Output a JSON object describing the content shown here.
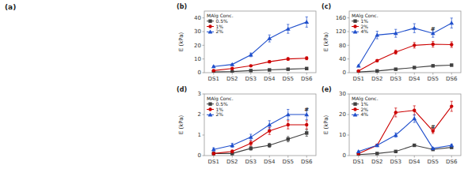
{
  "chart_data": [
    {
      "type": "blank",
      "title": "(a)"
    },
    {
      "type": "line",
      "title": "(b)",
      "y_label": "E (kPa)",
      "categories": [
        "DS1",
        "DS2",
        "DS3",
        "DS4",
        "DS5",
        "DS6"
      ],
      "ylim": [
        0,
        45
      ],
      "yticks": [
        0,
        10,
        20,
        30,
        40
      ],
      "grid": false,
      "legend": "upper-left",
      "legend_title": "MAlg Conc.",
      "series": [
        {
          "name": "0.5%",
          "color": "#404040",
          "marker": "square",
          "values": [
            0.5,
            0.8,
            1.5,
            2.0,
            2.5,
            3.0
          ],
          "errors": [
            0.1,
            0.13,
            0.2,
            0.25,
            0.3,
            0.35
          ]
        },
        {
          "name": "1%",
          "color": "#cc0000",
          "marker": "circle",
          "values": [
            1.5,
            3.0,
            5.0,
            8.0,
            10.0,
            10.5
          ],
          "errors": [
            0.2,
            0.35,
            0.55,
            0.85,
            1.05,
            1.1
          ]
        },
        {
          "name": "2%",
          "color": "#1f4fcc",
          "marker": "triangle",
          "values": [
            4.5,
            6.0,
            13.0,
            25.0,
            32.0,
            37.0
          ],
          "errors": [
            0.5,
            0.65,
            1.35,
            2.55,
            3.25,
            3.75
          ]
        }
      ]
    },
    {
      "type": "line",
      "title": "(c)",
      "y_label": "E (kPa)",
      "categories": [
        "DS1",
        "DS2",
        "DS3",
        "DS4",
        "DS5",
        "DS6"
      ],
      "ylim": [
        0,
        180
      ],
      "yticks": [
        0,
        40,
        80,
        120,
        160
      ],
      "grid": false,
      "legend": "upper-left",
      "legend_title": "MAlg Conc.",
      "annotations": [
        {
          "text": "#",
          "x": "DS5",
          "y": 120.75
        }
      ],
      "series": [
        {
          "name": "1%",
          "color": "#404040",
          "marker": "square",
          "values": [
            2.0,
            5.0,
            10.0,
            15.0,
            20.0,
            22.0
          ],
          "errors": [
            0.25,
            0.55,
            1.05,
            1.55,
            2.05,
            2.25
          ]
        },
        {
          "name": "2%",
          "color": "#cc0000",
          "marker": "circle",
          "values": [
            5.0,
            35.0,
            60.0,
            80.0,
            83.0,
            82.0
          ],
          "errors": [
            0.55,
            3.55,
            6.05,
            8.05,
            8.35,
            8.25
          ]
        },
        {
          "name": "4%",
          "color": "#1f4fcc",
          "marker": "triangle",
          "values": [
            20.0,
            110.0,
            115.0,
            130.0,
            115.0,
            145.0
          ],
          "errors": [
            2.05,
            11.05,
            11.55,
            13.05,
            11.55,
            14.55
          ]
        }
      ]
    },
    {
      "type": "line",
      "title": "(d)",
      "y_label": "E (kPa)",
      "categories": [
        "DS1",
        "DS2",
        "DS3",
        "DS4",
        "DS5",
        "DS6"
      ],
      "ylim": [
        0,
        3
      ],
      "yticks": [
        0,
        1,
        2,
        3
      ],
      "grid": false,
      "legend": "upper-left",
      "legend_title": "MAlg Conc.",
      "annotations": [
        {
          "text": "#",
          "x": "DS6",
          "y": 2.1
        }
      ],
      "series": [
        {
          "name": "0.5%",
          "color": "#404040",
          "marker": "square",
          "values": [
            0.1,
            0.1,
            0.35,
            0.5,
            0.8,
            1.1
          ],
          "errors": [
            0.06,
            0.06,
            0.085,
            0.1,
            0.13,
            0.16
          ]
        },
        {
          "name": "1%",
          "color": "#cc0000",
          "marker": "circle",
          "values": [
            0.1,
            0.2,
            0.6,
            1.2,
            1.5,
            1.5
          ],
          "errors": [
            0.06,
            0.07,
            0.11,
            0.17,
            0.2,
            0.2
          ]
        },
        {
          "name": "2%",
          "color": "#1f4fcc",
          "marker": "triangle",
          "values": [
            0.3,
            0.5,
            0.9,
            1.5,
            2.0,
            2.0
          ],
          "errors": [
            0.08,
            0.1,
            0.14,
            0.2,
            0.25,
            0.25
          ]
        }
      ]
    },
    {
      "type": "line",
      "title": "(e)",
      "y_label": "E (kPa)",
      "categories": [
        "DS1",
        "DS2",
        "DS3",
        "DS4",
        "DS5",
        "DS6"
      ],
      "ylim": [
        0,
        30
      ],
      "yticks": [
        0,
        10,
        20,
        30
      ],
      "grid": false,
      "legend": "upper-left",
      "legend_title": "MAlg Conc.",
      "annotations": [
        {
          "text": "#",
          "x": "DS5",
          "y": 12.6
        }
      ],
      "series": [
        {
          "name": "1%",
          "color": "#404040",
          "marker": "square",
          "values": [
            0.5,
            1.0,
            2.0,
            5.0,
            3.0,
            4.0
          ],
          "errors": [
            0.1,
            0.15,
            0.25,
            0.55,
            0.35,
            0.45
          ]
        },
        {
          "name": "2%",
          "color": "#cc0000",
          "marker": "circle",
          "values": [
            1.0,
            5.0,
            21.0,
            22.0,
            12.0,
            24.0
          ],
          "errors": [
            0.15,
            0.55,
            2.15,
            2.25,
            1.25,
            2.45
          ]
        },
        {
          "name": "4%",
          "color": "#1f4fcc",
          "marker": "triangle",
          "values": [
            2.0,
            5.0,
            10.0,
            18.0,
            3.5,
            5.0
          ],
          "errors": [
            0.25,
            0.55,
            1.05,
            1.85,
            0.4,
            0.55
          ]
        }
      ]
    }
  ]
}
